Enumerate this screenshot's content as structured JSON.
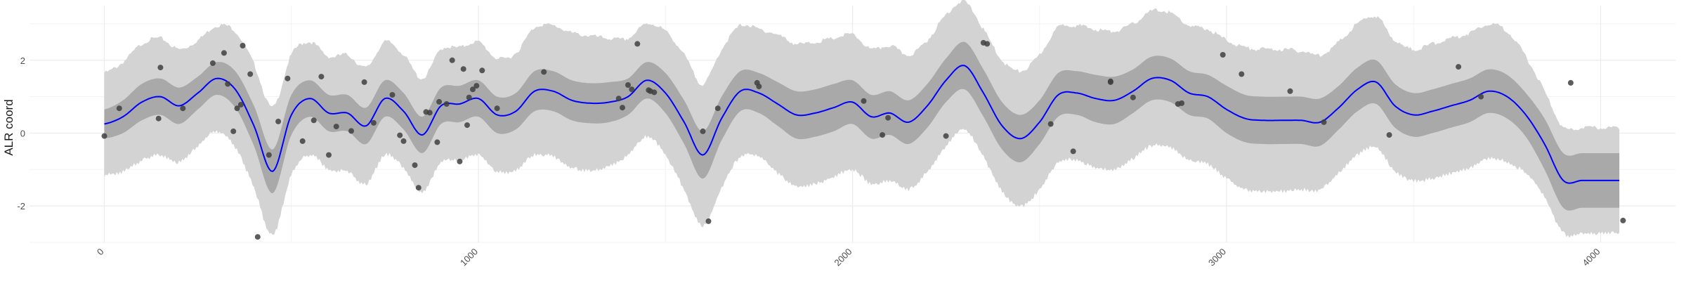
{
  "chart_data": {
    "type": "scatter",
    "title": "",
    "xlabel": "",
    "ylabel": "ALR coord",
    "xlim": [
      -200,
      4200
    ],
    "ylim": [
      -3.0,
      3.5
    ],
    "x_ticks": [
      0,
      1000,
      2000,
      3000,
      4000
    ],
    "x_tick_labels": [
      "0",
      "1000",
      "2000",
      "3000",
      "4000"
    ],
    "y_ticks": [
      -2,
      0,
      2
    ],
    "y_tick_labels": [
      "-2",
      "0",
      "2"
    ],
    "grid": true,
    "colors": {
      "mean_line": "#0000ff",
      "inner_band": "#a9a9a9",
      "outer_band": "#d3d3d3",
      "points": "#404040",
      "grid": "#ebebeb"
    },
    "series": [
      {
        "kind": "points",
        "x": [
          0,
          40,
          145,
          150,
          210,
          290,
          320,
          330,
          345,
          355,
          365,
          370,
          390,
          410,
          440,
          465,
          490,
          530,
          560,
          580,
          600,
          620,
          660,
          695,
          720,
          770,
          790,
          800,
          830,
          840,
          860,
          870,
          890,
          895,
          915,
          930,
          950,
          960,
          970,
          975,
          985,
          995,
          1010,
          1050,
          1175,
          1375,
          1385,
          1400,
          1410,
          1425,
          1455,
          1460,
          1470,
          1600,
          1615,
          1640,
          1745,
          1750,
          2030,
          2080,
          2095,
          2250,
          2350,
          2360,
          2530,
          2590,
          2690,
          2690,
          2750,
          2870,
          2880,
          2990,
          3040,
          3170,
          3260,
          3435,
          3620,
          3680,
          3920,
          4060
        ],
        "y": [
          -0.08,
          0.68,
          0.4,
          1.8,
          0.68,
          1.92,
          2.2,
          1.35,
          0.05,
          0.68,
          0.78,
          2.4,
          1.62,
          -2.85,
          -0.6,
          0.32,
          1.5,
          -0.22,
          0.35,
          1.55,
          -0.6,
          0.18,
          0.06,
          1.4,
          0.28,
          1.05,
          -0.06,
          -0.22,
          -0.88,
          -1.5,
          0.58,
          0.56,
          -0.25,
          0.86,
          0.8,
          2.0,
          -0.78,
          1.76,
          0.22,
          0.98,
          1.2,
          1.3,
          1.72,
          0.68,
          1.68,
          0.95,
          0.7,
          1.32,
          1.2,
          2.45,
          1.18,
          1.15,
          1.12,
          0.05,
          -2.42,
          0.68,
          1.38,
          1.28,
          0.88,
          -0.05,
          0.42,
          -0.08,
          2.48,
          2.45,
          0.25,
          -0.5,
          1.4,
          1.42,
          0.98,
          0.8,
          0.82,
          2.15,
          1.62,
          1.15,
          0.3,
          -0.05,
          1.82,
          1.0,
          1.38,
          -2.4
        ]
      },
      {
        "kind": "mean_line",
        "x": [
          0,
          50,
          100,
          150,
          200,
          250,
          300,
          350,
          400,
          450,
          500,
          550,
          600,
          650,
          700,
          750,
          800,
          850,
          900,
          950,
          1000,
          1050,
          1100,
          1150,
          1200,
          1250,
          1300,
          1350,
          1400,
          1450,
          1500,
          1550,
          1600,
          1650,
          1700,
          1750,
          1800,
          1850,
          1900,
          1950,
          2000,
          2050,
          2100,
          2150,
          2200,
          2250,
          2300,
          2350,
          2400,
          2450,
          2500,
          2550,
          2600,
          2650,
          2700,
          2750,
          2800,
          2850,
          2900,
          2950,
          3000,
          3050,
          3100,
          3150,
          3200,
          3250,
          3300,
          3350,
          3400,
          3450,
          3500,
          3550,
          3600,
          3650,
          3700,
          3750,
          3800,
          3850,
          3900,
          3950,
          4000,
          4050
        ],
        "y": [
          0.25,
          0.45,
          0.85,
          1.0,
          0.75,
          1.1,
          1.5,
          1.2,
          0.2,
          -1.05,
          0.5,
          0.95,
          0.55,
          0.55,
          0.2,
          0.95,
          0.6,
          -0.05,
          0.75,
          0.8,
          0.95,
          0.5,
          0.6,
          1.15,
          1.15,
          0.9,
          0.82,
          0.85,
          1.0,
          1.45,
          1.1,
          0.3,
          -0.6,
          0.4,
          1.15,
          1.1,
          0.8,
          0.5,
          0.55,
          0.7,
          0.85,
          0.45,
          0.55,
          0.3,
          0.75,
          1.45,
          1.85,
          1.1,
          0.2,
          -0.15,
          0.3,
          1.05,
          1.1,
          0.95,
          0.9,
          1.15,
          1.5,
          1.45,
          1.1,
          1.0,
          0.65,
          0.4,
          0.35,
          0.35,
          0.35,
          0.3,
          0.7,
          1.2,
          1.4,
          0.75,
          0.5,
          0.6,
          0.75,
          0.9,
          1.15,
          1.0,
          0.5,
          -0.3,
          -1.3,
          -1.3,
          -1.3,
          -1.3
        ]
      }
    ],
    "bands": [
      {
        "kind": "inner_band",
        "half_width": [
          0.4,
          0.45,
          0.5,
          0.5,
          0.5,
          0.45,
          0.45,
          0.5,
          0.55,
          0.6,
          0.55,
          0.5,
          0.5,
          0.5,
          0.5,
          0.5,
          0.5,
          0.5,
          0.5,
          0.5,
          0.5,
          0.5,
          0.5,
          0.55,
          0.55,
          0.55,
          0.55,
          0.55,
          0.5,
          0.5,
          0.55,
          0.6,
          0.65,
          0.6,
          0.55,
          0.55,
          0.6,
          0.65,
          0.65,
          0.65,
          0.6,
          0.6,
          0.6,
          0.6,
          0.6,
          0.6,
          0.65,
          0.65,
          0.65,
          0.65,
          0.6,
          0.6,
          0.6,
          0.65,
          0.65,
          0.6,
          0.6,
          0.6,
          0.6,
          0.6,
          0.65,
          0.65,
          0.65,
          0.65,
          0.65,
          0.65,
          0.6,
          0.6,
          0.6,
          0.6,
          0.6,
          0.6,
          0.6,
          0.6,
          0.6,
          0.6,
          0.6,
          0.7,
          0.75,
          0.75,
          0.75,
          0.75
        ]
      },
      {
        "kind": "outer_band",
        "half_width": [
          1.4,
          1.5,
          1.6,
          1.6,
          1.55,
          1.45,
          1.45,
          1.6,
          1.7,
          1.75,
          1.65,
          1.55,
          1.55,
          1.6,
          1.6,
          1.55,
          1.55,
          1.55,
          1.55,
          1.55,
          1.55,
          1.55,
          1.6,
          1.75,
          1.8,
          1.85,
          1.85,
          1.75,
          1.6,
          1.55,
          1.7,
          1.85,
          1.95,
          1.9,
          1.8,
          1.75,
          1.9,
          1.95,
          1.95,
          1.9,
          1.85,
          1.85,
          1.85,
          1.85,
          1.8,
          1.8,
          1.75,
          1.75,
          1.8,
          1.85,
          1.85,
          1.85,
          1.85,
          1.9,
          1.9,
          1.85,
          1.85,
          1.85,
          1.85,
          1.85,
          1.9,
          1.95,
          1.95,
          1.95,
          1.9,
          1.85,
          1.8,
          1.8,
          1.8,
          1.8,
          1.8,
          1.85,
          1.85,
          1.85,
          1.85,
          1.8,
          1.6,
          1.45,
          1.45,
          1.45,
          1.45,
          1.45
        ]
      }
    ]
  }
}
